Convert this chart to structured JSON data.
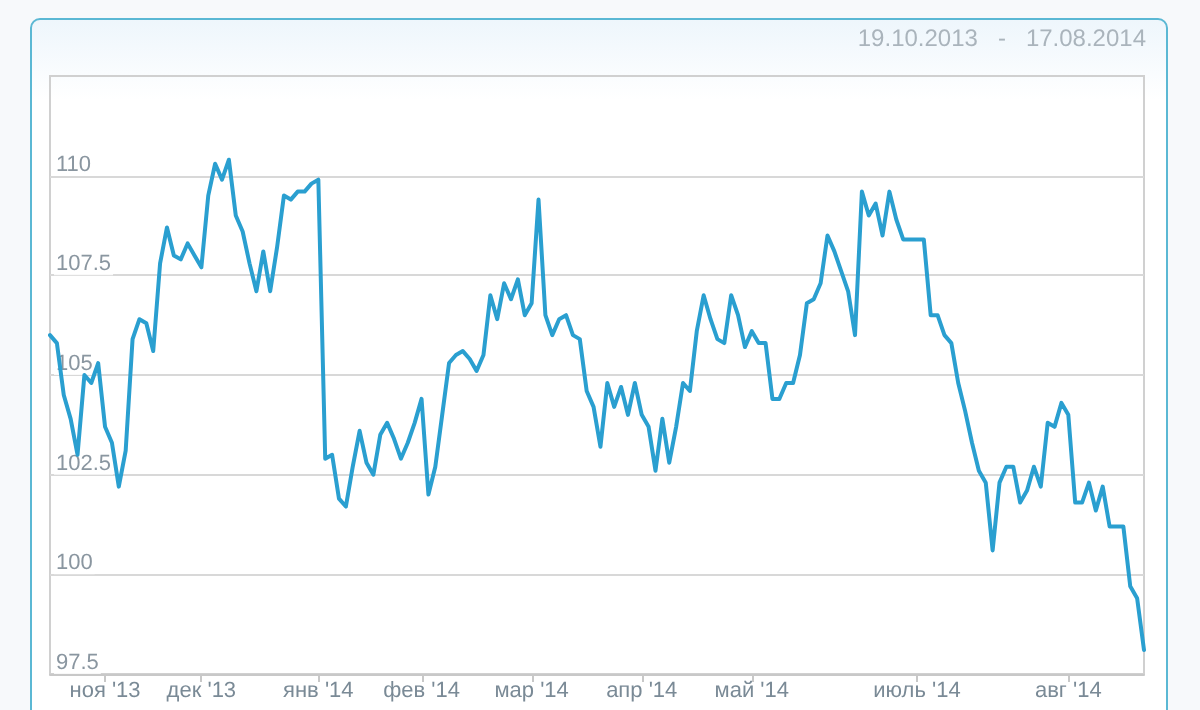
{
  "chart_data": {
    "type": "line",
    "title": "19.10.2013   -   17.08.2014",
    "categories": [
      null,
      null,
      null,
      null,
      null,
      null,
      null,
      null,
      "ноя '13",
      null,
      null,
      null,
      null,
      null,
      null,
      null,
      null,
      null,
      null,
      null,
      null,
      null,
      "дек '13",
      null,
      null,
      null,
      null,
      null,
      null,
      null,
      null,
      null,
      null,
      null,
      null,
      null,
      null,
      null,
      null,
      "янв '14",
      null,
      null,
      null,
      null,
      null,
      null,
      null,
      null,
      null,
      null,
      null,
      null,
      null,
      null,
      "фев '14",
      null,
      null,
      null,
      null,
      null,
      null,
      null,
      null,
      null,
      null,
      null,
      null,
      null,
      null,
      null,
      "мар '14",
      null,
      null,
      null,
      null,
      null,
      null,
      null,
      null,
      null,
      null,
      null,
      null,
      null,
      null,
      null,
      "апр '14",
      null,
      null,
      null,
      null,
      null,
      null,
      null,
      null,
      null,
      null,
      null,
      null,
      null,
      null,
      null,
      "май '14",
      null,
      null,
      null,
      null,
      null,
      null,
      null,
      null,
      null,
      null,
      null,
      null,
      null,
      null,
      null,
      null,
      null,
      null,
      null,
      null,
      null,
      null,
      null,
      "июль '14",
      null,
      null,
      null,
      null,
      null,
      null,
      null,
      null,
      null,
      null,
      null,
      null,
      null,
      null,
      null,
      null,
      null,
      null,
      null,
      null,
      null,
      "авг '14",
      null,
      null,
      null,
      null,
      null,
      null,
      null,
      null,
      null,
      null,
      null
    ],
    "series": [
      {
        "color": "#2a9fd0",
        "values": [
          106.0,
          105.8,
          104.5,
          103.9,
          103.0,
          105.0,
          104.8,
          105.3,
          103.7,
          103.3,
          102.2,
          103.1,
          105.9,
          106.4,
          106.3,
          105.6,
          107.8,
          108.7,
          108.0,
          107.9,
          108.3,
          108.0,
          107.7,
          109.5,
          110.3,
          109.9,
          110.4,
          109.0,
          108.6,
          107.8,
          107.1,
          108.1,
          107.1,
          108.2,
          109.5,
          109.4,
          109.6,
          109.6,
          109.8,
          109.9,
          102.9,
          103.0,
          101.9,
          101.7,
          102.7,
          103.6,
          102.8,
          102.5,
          103.5,
          103.8,
          103.4,
          102.9,
          103.3,
          103.8,
          104.4,
          102.0,
          102.7,
          104.0,
          105.3,
          105.5,
          105.6,
          105.4,
          105.1,
          105.5,
          107.0,
          106.4,
          107.3,
          106.9,
          107.4,
          106.5,
          106.8,
          109.4,
          106.5,
          106.0,
          106.4,
          106.5,
          106.0,
          105.9,
          104.6,
          104.2,
          103.2,
          104.8,
          104.2,
          104.7,
          104.0,
          104.8,
          104.0,
          103.7,
          102.6,
          103.9,
          102.8,
          103.7,
          104.8,
          104.6,
          106.1,
          107.0,
          106.4,
          105.9,
          105.8,
          107.0,
          106.5,
          105.7,
          106.1,
          105.8,
          105.8,
          104.4,
          104.4,
          104.8,
          104.8,
          105.5,
          106.8,
          106.9,
          107.3,
          108.5,
          108.1,
          107.6,
          107.1,
          106.0,
          109.6,
          109.0,
          109.3,
          108.5,
          109.6,
          108.9,
          108.4,
          108.4,
          108.4,
          108.4,
          106.5,
          106.5,
          106.0,
          105.8,
          104.8,
          104.1,
          103.3,
          102.6,
          102.3,
          100.6,
          102.3,
          102.7,
          102.7,
          101.8,
          102.1,
          102.7,
          102.2,
          103.8,
          103.7,
          104.3,
          104.0,
          101.8,
          101.8,
          102.3,
          101.6,
          102.2,
          101.2,
          101.2,
          101.2,
          99.7,
          99.4,
          98.1
        ]
      }
    ],
    "ylim": [
      97.5,
      112.5
    ],
    "yticks": [
      97.5,
      100,
      102.5,
      105,
      107.5,
      110
    ],
    "grid": "y",
    "marker": "none",
    "line_style": "solid"
  }
}
